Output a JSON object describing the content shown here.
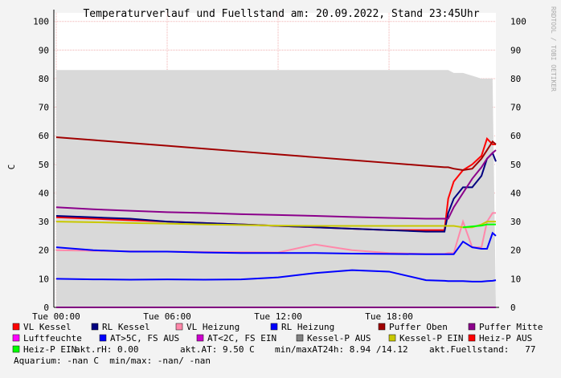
{
  "chart_data": {
    "type": "line",
    "title": "Temperaturverlauf und Fuellstand am: 20.09.2022, Stand 23:45Uhr",
    "y_label": "C",
    "side_text": "RRDTOOL / TOBI OETIKER",
    "x": [
      0,
      2,
      4,
      6,
      8,
      10,
      12,
      14,
      16,
      18,
      20,
      21,
      21.2,
      21.5,
      22,
      22.5,
      23,
      23.3,
      23.6,
      23.78
    ],
    "xlim": [
      -0.13,
      23.78
    ],
    "xticks": [
      {
        "value": 0,
        "label": "Tue 00:00"
      },
      {
        "value": 6,
        "label": "Tue 06:00"
      },
      {
        "value": 12,
        "label": "Tue 12:00"
      },
      {
        "value": 18,
        "label": "Tue 18:00"
      }
    ],
    "ylim": [
      0,
      103
    ],
    "yticks": [
      0,
      10,
      20,
      30,
      40,
      50,
      60,
      70,
      80,
      90,
      100
    ],
    "grid": true,
    "series": [
      {
        "name": "Kessel-P AUS",
        "color": "#808080",
        "area": true,
        "values": [
          83,
          83,
          83,
          83,
          83,
          83,
          83,
          83,
          83,
          83,
          83,
          83,
          83,
          82,
          82,
          81,
          80,
          80,
          80,
          0
        ]
      },
      {
        "name": "VL Kessel",
        "color": "#ff0000",
        "values": [
          31.5,
          31,
          30.5,
          30,
          29.5,
          29,
          28.5,
          28,
          27.5,
          27,
          27,
          27,
          38,
          44,
          48,
          50,
          53,
          59,
          57,
          57
        ]
      },
      {
        "name": "RL Kessel",
        "color": "#000080",
        "values": [
          32,
          31.5,
          31,
          30,
          29.5,
          29,
          28.5,
          28,
          27.5,
          27,
          26.5,
          26.5,
          33,
          38,
          42,
          42,
          46,
          52,
          54,
          51
        ]
      },
      {
        "name": "VL Heizung",
        "color": "#ff88aa",
        "values": [
          20,
          19.8,
          19.6,
          19.5,
          19.4,
          19.3,
          19.2,
          22,
          20,
          19,
          18.7,
          18.7,
          19,
          19,
          30,
          21,
          21,
          30,
          33,
          33
        ]
      },
      {
        "name": "RL Heizung",
        "color": "#0000ff",
        "values": [
          21,
          20,
          19.5,
          19.5,
          19.2,
          19,
          19,
          19,
          18.8,
          18.7,
          18.6,
          18.6,
          18.6,
          18.6,
          23,
          21,
          20.5,
          20.5,
          26,
          25
        ]
      },
      {
        "name": "Puffer Oben",
        "color": "#a00000",
        "values": [
          59.5,
          58.5,
          57.5,
          56.5,
          55.5,
          54.5,
          53.5,
          52.5,
          51.5,
          50.5,
          49.5,
          49,
          49,
          48.5,
          48,
          48.5,
          52,
          55,
          58,
          57
        ]
      },
      {
        "name": "Puffer Mitte",
        "color": "#8b008b",
        "values": [
          35,
          34.3,
          33.8,
          33.3,
          33,
          32.6,
          32.3,
          32,
          31.6,
          31.3,
          31,
          31,
          31,
          35,
          40,
          45,
          49,
          52,
          54,
          55
        ]
      },
      {
        "name": "Luftfeuchte",
        "color": "#ff00ff",
        "values": [
          0,
          0,
          0,
          0,
          0,
          0,
          0,
          0,
          0,
          0,
          0,
          0,
          0,
          0,
          0,
          0,
          0,
          0,
          0,
          0
        ]
      },
      {
        "name": "AT>5C, FS AUS",
        "color": "#0000ff",
        "values": [
          10,
          9.8,
          9.7,
          9.8,
          9.7,
          9.8,
          10.5,
          12,
          13,
          12.5,
          9.5,
          9.3,
          9.2,
          9.2,
          9.2,
          9,
          9,
          9.2,
          9.3,
          9.5
        ]
      },
      {
        "name": "AT<2C, FS EIN",
        "color": "#cc00cc",
        "values": [
          null,
          null,
          null,
          null,
          null,
          null,
          null,
          null,
          null,
          null,
          null,
          null,
          null,
          null,
          null,
          null,
          null,
          null,
          null,
          null
        ]
      },
      {
        "name": "Kessel-P EIN",
        "color": "#c8c800",
        "values": [
          30,
          29.8,
          29.5,
          29.3,
          29,
          28.8,
          28.6,
          28.5,
          28.5,
          28.5,
          28.5,
          28.5,
          28.5,
          28.5,
          28,
          28,
          29,
          30,
          30,
          30
        ]
      },
      {
        "name": "Heiz-P AUS",
        "color": "#ff0000",
        "values": [
          null,
          null,
          null,
          null,
          null,
          null,
          null,
          null,
          null,
          null,
          null,
          null,
          null,
          null,
          null,
          null,
          null,
          null,
          null,
          null
        ]
      },
      {
        "name": "Heiz-P EIN",
        "color": "#00ff00",
        "values": [
          null,
          null,
          null,
          null,
          null,
          null,
          null,
          null,
          null,
          null,
          null,
          null,
          null,
          null,
          28,
          28.3,
          28.6,
          29,
          29,
          29
        ]
      }
    ],
    "legend_order": [
      1,
      2,
      3,
      4,
      5,
      6,
      7,
      8,
      9,
      0,
      10,
      11,
      12
    ],
    "annotations": [
      "akt.rH: 0.00",
      "akt.AT: 9.50 C",
      "min/maxAT24h: 8.94 /14.12",
      "akt.Fuellstand:   77",
      "Aquarium: -nan C  min/max: -nan/ -nan"
    ]
  }
}
